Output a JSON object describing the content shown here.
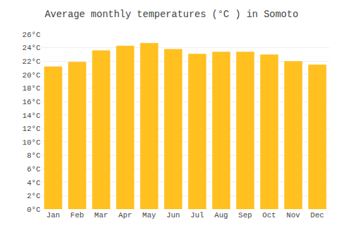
{
  "chart_data": {
    "type": "bar",
    "title": "Average monthly temperatures (°C ) in Somoto",
    "categories": [
      "Jan",
      "Feb",
      "Mar",
      "Apr",
      "May",
      "Jun",
      "Jul",
      "Aug",
      "Sep",
      "Oct",
      "Nov",
      "Dec"
    ],
    "values": [
      21.2,
      21.9,
      23.6,
      24.3,
      24.7,
      23.8,
      23.1,
      23.4,
      23.4,
      23.0,
      22.0,
      21.5
    ],
    "color": "#FFC020",
    "ylim": [
      0,
      26
    ],
    "yticks": [
      {
        "value": 0,
        "label": "0°C"
      },
      {
        "value": 2,
        "label": "2°C"
      },
      {
        "value": 4,
        "label": "4°C"
      },
      {
        "value": 6,
        "label": "6°C"
      },
      {
        "value": 8,
        "label": "8°C"
      },
      {
        "value": 10,
        "label": "10°C"
      },
      {
        "value": 12,
        "label": "12°C"
      },
      {
        "value": 14,
        "label": "14°C"
      },
      {
        "value": 16,
        "label": "16°C"
      },
      {
        "value": 18,
        "label": "18°C"
      },
      {
        "value": 20,
        "label": "20°C"
      },
      {
        "value": 22,
        "label": "22°C"
      },
      {
        "value": 24,
        "label": "24°C"
      },
      {
        "value": 26,
        "label": "26°C"
      }
    ],
    "grid": true
  }
}
